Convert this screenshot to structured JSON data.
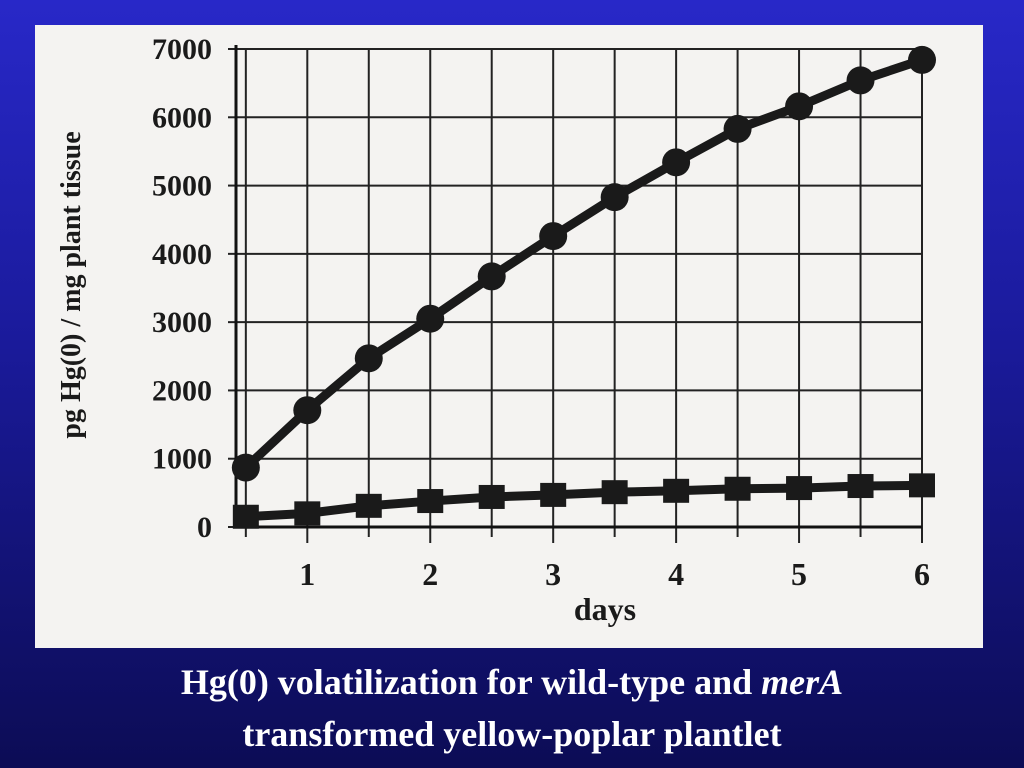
{
  "chart_data": {
    "type": "line",
    "x": [
      0.5,
      1,
      1.5,
      2,
      2.5,
      3,
      3.5,
      4,
      4.5,
      5,
      5.5,
      6
    ],
    "series": [
      {
        "color": "#1a1a1a",
        "marker": "circle",
        "values": [
          870,
          1710,
          2470,
          3050,
          3670,
          4260,
          4830,
          5340,
          5830,
          6160,
          6540,
          6840
        ]
      },
      {
        "color": "#1a1a1a",
        "marker": "square",
        "values": [
          150,
          200,
          310,
          380,
          440,
          470,
          510,
          530,
          560,
          570,
          600,
          610
        ]
      }
    ],
    "xlabel": "days",
    "ylabel": "pg Hg(0) / mg plant tissue",
    "xlim": [
      0.42,
      6
    ],
    "ylim": [
      0,
      7000
    ],
    "xticks": [
      1,
      2,
      3,
      4,
      5,
      6
    ],
    "xminorticks": [
      0.5,
      1.5,
      2.5,
      3.5,
      4.5,
      5.5
    ],
    "yticks": [
      0,
      1000,
      2000,
      3000,
      4000,
      5000,
      6000,
      7000
    ],
    "grid": true
  },
  "caption": {
    "line1": "Hg(0) volatilization for wild-type and",
    "line1_italic": "merA",
    "line2": "transformed yellow-poplar plantlet"
  }
}
